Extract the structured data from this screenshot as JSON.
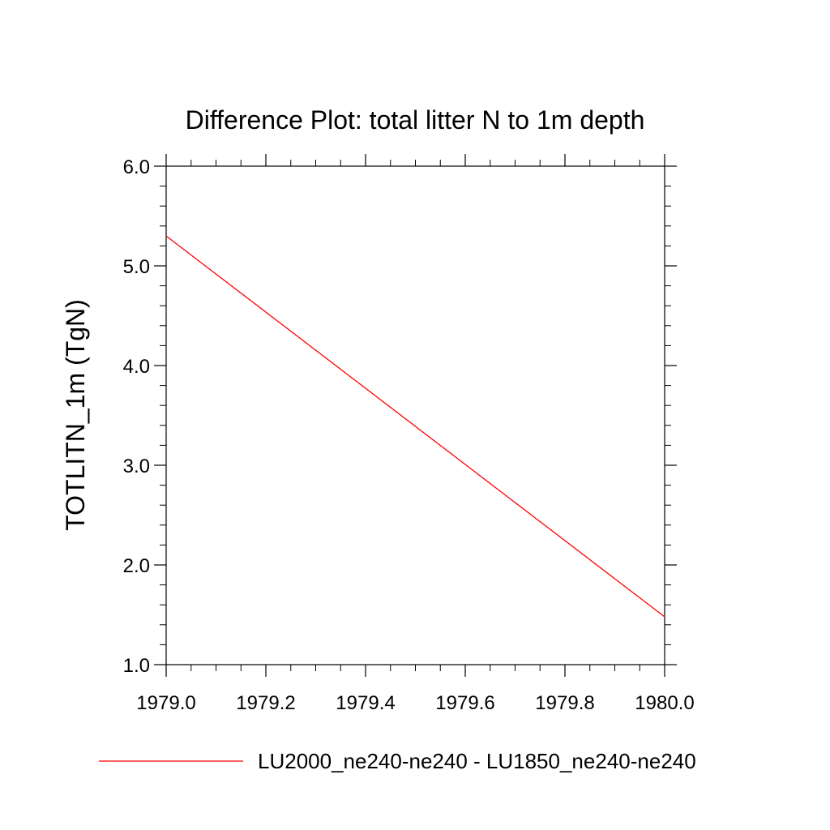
{
  "chart_data": {
    "type": "line",
    "title": "Difference Plot: total litter N to 1m depth",
    "xlabel": "",
    "ylabel": "TOTLITN_1m  (TgN)",
    "xlim": [
      1979.0,
      1980.0
    ],
    "ylim": [
      1.0,
      6.0
    ],
    "x_ticks": [
      1979.0,
      1979.2,
      1979.4,
      1979.6,
      1979.8,
      1980.0
    ],
    "x_tick_labels": [
      "1979.0",
      "1979.2",
      "1979.4",
      "1979.6",
      "1979.8",
      "1980.0"
    ],
    "y_ticks": [
      1.0,
      2.0,
      3.0,
      4.0,
      5.0,
      6.0
    ],
    "y_tick_labels": [
      "1.0",
      "2.0",
      "3.0",
      "4.0",
      "5.0",
      "6.0"
    ],
    "grid": false,
    "legend_position": "bottom",
    "series": [
      {
        "name": "LU2000_ne240-ne240 - LU1850_ne240-ne240",
        "color": "#ff0000",
        "x": [
          1979.0,
          1980.0
        ],
        "y": [
          5.3,
          1.48
        ]
      }
    ]
  }
}
